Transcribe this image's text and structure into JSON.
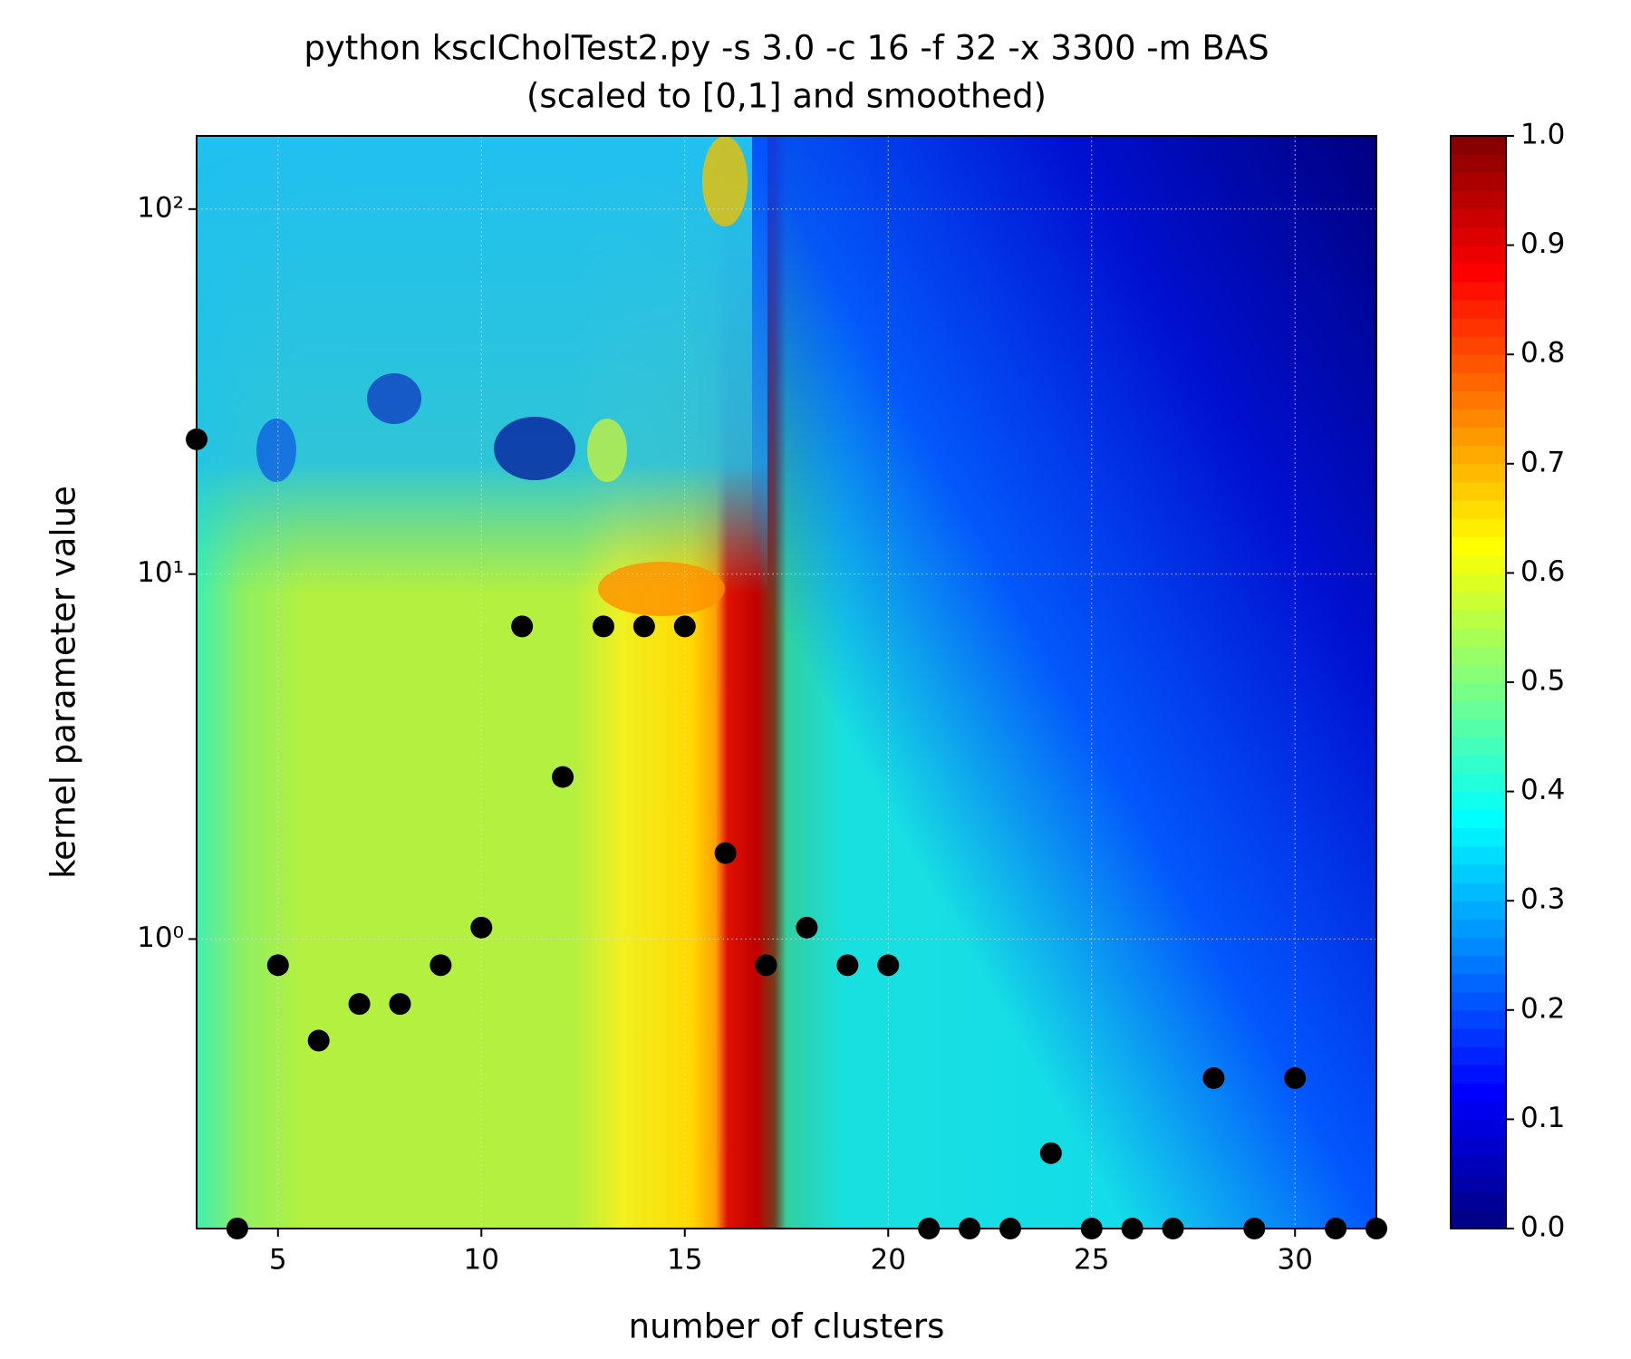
{
  "chart_data": {
    "type": "scatter",
    "title": "python kscICholTest2.py -s 3.0 -c 16 -f 32 -x 3300 -m BAS",
    "subtitle": "(scaled to [0,1] and smoothed)",
    "x_label": "number of clusters",
    "y_label": "kernel parameter value",
    "x": [
      3,
      4,
      5,
      6,
      7,
      8,
      9,
      10,
      11,
      12,
      13,
      14,
      15,
      16,
      17,
      18,
      19,
      20,
      21,
      22,
      23,
      24,
      25,
      26,
      27,
      28,
      29,
      30,
      31,
      32
    ],
    "y": [
      23.4,
      0.161,
      0.848,
      0.527,
      0.664,
      0.664,
      0.848,
      1.075,
      7.19,
      2.78,
      7.19,
      7.19,
      7.19,
      1.72,
      0.848,
      1.075,
      0.848,
      0.848,
      0.161,
      0.161,
      0.161,
      0.259,
      0.161,
      0.161,
      0.161,
      0.416,
      0.161,
      0.416,
      0.161,
      0.161
    ],
    "color": "#000000",
    "xlim": [
      3,
      32
    ],
    "xticks": [
      5,
      10,
      15,
      20,
      25,
      30
    ],
    "ylim": [
      0.161,
      158.7
    ],
    "y_log_scale": true,
    "yticks": [
      {
        "value": 1,
        "label": "10⁰"
      },
      {
        "value": 10,
        "label": "10¹"
      },
      {
        "value": 100,
        "label": "10²"
      }
    ],
    "grid": true,
    "colormap": "jet",
    "colorbar": {
      "lim": [
        0,
        1
      ],
      "ticks": [
        {
          "value": 0,
          "label": "0.0"
        },
        0.1,
        0.2,
        0.3,
        0.4,
        0.5,
        0.6,
        0.7,
        0.8,
        0.9,
        {
          "value": 1,
          "label": "1.0"
        }
      ]
    }
  }
}
